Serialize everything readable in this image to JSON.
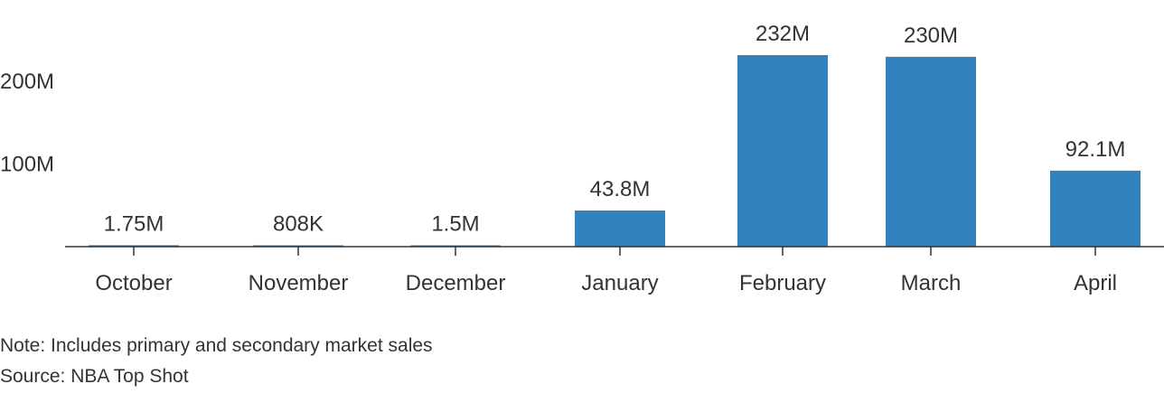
{
  "chart_data": {
    "type": "bar",
    "categories": [
      "October",
      "November",
      "December",
      "January",
      "February",
      "March",
      "April"
    ],
    "values": [
      1.75,
      0.808,
      1.5,
      43.8,
      232,
      230,
      92.1
    ],
    "value_unit": "M",
    "data_labels": [
      "1.75M",
      "808K",
      "1.5M",
      "43.8M",
      "232M",
      "230M",
      "92.1M"
    ],
    "y_ticks": [
      100,
      200
    ],
    "y_tick_labels": [
      "100M",
      "200M"
    ],
    "ylim": [
      0,
      232
    ],
    "grid": false,
    "bar_color": "#3182bd"
  },
  "footer": {
    "note": "Note: Includes primary and secondary market sales",
    "source": "Source: NBA Top Shot"
  }
}
